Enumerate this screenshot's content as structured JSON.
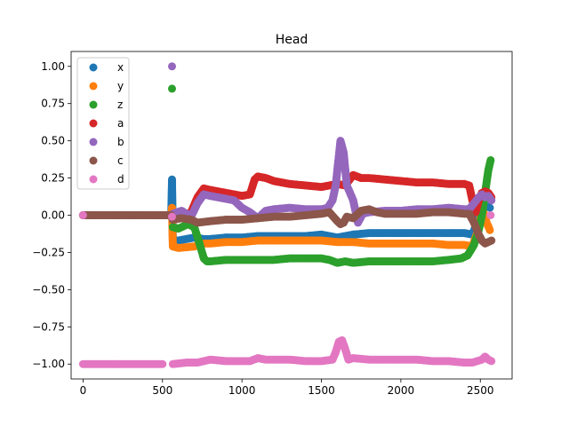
{
  "chart_data": {
    "type": "scatter",
    "title": "Head",
    "xlabel": "",
    "ylabel": "",
    "xlim": [
      -75,
      2700
    ],
    "ylim": [
      -1.1,
      1.1
    ],
    "xticks": [
      0,
      500,
      1000,
      1500,
      2000,
      2500
    ],
    "yticks": [
      -1.0,
      -0.75,
      -0.5,
      -0.25,
      0.0,
      0.25,
      0.5,
      0.75,
      1.0
    ],
    "ytick_labels": [
      "−1.00",
      "−0.75",
      "−0.50",
      "−0.25",
      "0.00",
      "0.25",
      "0.50",
      "0.75",
      "1.00"
    ],
    "legend_position": "top-left",
    "grid": false,
    "series": [
      {
        "name": "x",
        "color": "#1f77b4",
        "points": [
          [
            0,
            0
          ],
          [
            555,
            0
          ],
          [
            560,
            0.24
          ],
          [
            565,
            -0.17
          ],
          [
            600,
            -0.17
          ],
          [
            700,
            -0.15
          ],
          [
            760,
            -0.16
          ],
          [
            800,
            -0.16
          ],
          [
            900,
            -0.15
          ],
          [
            1000,
            -0.15
          ],
          [
            1100,
            -0.14
          ],
          [
            1200,
            -0.14
          ],
          [
            1300,
            -0.14
          ],
          [
            1400,
            -0.14
          ],
          [
            1500,
            -0.13
          ],
          [
            1550,
            -0.14
          ],
          [
            1600,
            -0.15
          ],
          [
            1650,
            -0.14
          ],
          [
            1700,
            -0.13
          ],
          [
            1800,
            -0.12
          ],
          [
            1900,
            -0.12
          ],
          [
            2000,
            -0.12
          ],
          [
            2100,
            -0.12
          ],
          [
            2200,
            -0.12
          ],
          [
            2300,
            -0.12
          ],
          [
            2400,
            -0.12
          ],
          [
            2450,
            -0.13
          ],
          [
            2480,
            -0.05
          ],
          [
            2500,
            0.03
          ],
          [
            2520,
            0.06
          ],
          [
            2540,
            0.06
          ],
          [
            2560,
            0.05
          ]
        ]
      },
      {
        "name": "y",
        "color": "#ff7f0e",
        "points": [
          [
            0,
            0
          ],
          [
            555,
            0
          ],
          [
            560,
            0.05
          ],
          [
            565,
            -0.21
          ],
          [
            600,
            -0.22
          ],
          [
            700,
            -0.21
          ],
          [
            760,
            -0.19
          ],
          [
            800,
            -0.19
          ],
          [
            900,
            -0.18
          ],
          [
            1000,
            -0.18
          ],
          [
            1100,
            -0.17
          ],
          [
            1200,
            -0.17
          ],
          [
            1300,
            -0.17
          ],
          [
            1400,
            -0.17
          ],
          [
            1500,
            -0.17
          ],
          [
            1600,
            -0.18
          ],
          [
            1700,
            -0.18
          ],
          [
            1800,
            -0.19
          ],
          [
            1900,
            -0.19
          ],
          [
            2000,
            -0.19
          ],
          [
            2100,
            -0.19
          ],
          [
            2200,
            -0.19
          ],
          [
            2300,
            -0.2
          ],
          [
            2400,
            -0.2
          ],
          [
            2450,
            -0.21
          ],
          [
            2480,
            -0.12
          ],
          [
            2500,
            -0.02
          ],
          [
            2520,
            0.02
          ],
          [
            2540,
            -0.05
          ],
          [
            2560,
            -0.1
          ]
        ]
      },
      {
        "name": "z",
        "color": "#2ca02c",
        "points": [
          [
            0,
            0
          ],
          [
            555,
            0
          ],
          [
            560,
            0.85
          ],
          [
            565,
            -0.08
          ],
          [
            600,
            -0.09
          ],
          [
            660,
            -0.06
          ],
          [
            700,
            -0.08
          ],
          [
            730,
            -0.18
          ],
          [
            760,
            -0.29
          ],
          [
            780,
            -0.31
          ],
          [
            800,
            -0.31
          ],
          [
            900,
            -0.3
          ],
          [
            1000,
            -0.3
          ],
          [
            1100,
            -0.3
          ],
          [
            1200,
            -0.3
          ],
          [
            1300,
            -0.29
          ],
          [
            1400,
            -0.29
          ],
          [
            1500,
            -0.29
          ],
          [
            1550,
            -0.3
          ],
          [
            1600,
            -0.32
          ],
          [
            1650,
            -0.31
          ],
          [
            1700,
            -0.32
          ],
          [
            1800,
            -0.31
          ],
          [
            1900,
            -0.31
          ],
          [
            2000,
            -0.31
          ],
          [
            2100,
            -0.31
          ],
          [
            2200,
            -0.31
          ],
          [
            2300,
            -0.3
          ],
          [
            2380,
            -0.29
          ],
          [
            2420,
            -0.27
          ],
          [
            2460,
            -0.2
          ],
          [
            2490,
            -0.1
          ],
          [
            2510,
            0
          ],
          [
            2530,
            0.15
          ],
          [
            2550,
            0.3
          ],
          [
            2565,
            0.37
          ]
        ]
      },
      {
        "name": "a",
        "color": "#d62728",
        "points": [
          [
            0,
            0
          ],
          [
            555,
            0
          ],
          [
            565,
            -0.02
          ],
          [
            620,
            -0.01
          ],
          [
            680,
            0.02
          ],
          [
            720,
            0.12
          ],
          [
            760,
            0.18
          ],
          [
            800,
            0.17
          ],
          [
            850,
            0.16
          ],
          [
            900,
            0.15
          ],
          [
            950,
            0.14
          ],
          [
            1000,
            0.13
          ],
          [
            1050,
            0.14
          ],
          [
            1080,
            0.24
          ],
          [
            1100,
            0.26
          ],
          [
            1150,
            0.25
          ],
          [
            1200,
            0.23
          ],
          [
            1300,
            0.21
          ],
          [
            1400,
            0.2
          ],
          [
            1500,
            0.19
          ],
          [
            1600,
            0.21
          ],
          [
            1650,
            0.2
          ],
          [
            1700,
            0.27
          ],
          [
            1750,
            0.25
          ],
          [
            1800,
            0.25
          ],
          [
            1900,
            0.24
          ],
          [
            2000,
            0.23
          ],
          [
            2100,
            0.22
          ],
          [
            2200,
            0.22
          ],
          [
            2300,
            0.21
          ],
          [
            2400,
            0.21
          ],
          [
            2430,
            0.2
          ],
          [
            2450,
            0.1
          ],
          [
            2470,
            0.02
          ],
          [
            2490,
            0.1
          ],
          [
            2510,
            0.15
          ],
          [
            2530,
            0.16
          ],
          [
            2550,
            0.15
          ],
          [
            2570,
            0.12
          ]
        ]
      },
      {
        "name": "b",
        "color": "#9467bd",
        "points": [
          [
            0,
            0
          ],
          [
            555,
            0
          ],
          [
            560,
            1.0
          ],
          [
            565,
            0.01
          ],
          [
            620,
            0.03
          ],
          [
            680,
            -0.01
          ],
          [
            720,
            0.08
          ],
          [
            760,
            0.14
          ],
          [
            800,
            0.13
          ],
          [
            900,
            0.11
          ],
          [
            950,
            0.1
          ],
          [
            1000,
            0.05
          ],
          [
            1050,
            0.02
          ],
          [
            1100,
            -0.02
          ],
          [
            1150,
            0.03
          ],
          [
            1200,
            0.04
          ],
          [
            1300,
            0.05
          ],
          [
            1400,
            0.04
          ],
          [
            1500,
            0.04
          ],
          [
            1540,
            0.05
          ],
          [
            1570,
            0.1
          ],
          [
            1590,
            0.2
          ],
          [
            1610,
            0.4
          ],
          [
            1620,
            0.5
          ],
          [
            1640,
            0.42
          ],
          [
            1660,
            0.2
          ],
          [
            1680,
            0.15
          ],
          [
            1700,
            0.1
          ],
          [
            1730,
            -0.05
          ],
          [
            1760,
            0.01
          ],
          [
            1800,
            0.02
          ],
          [
            1900,
            0.03
          ],
          [
            2000,
            0.03
          ],
          [
            2100,
            0.04
          ],
          [
            2200,
            0.04
          ],
          [
            2300,
            0.05
          ],
          [
            2400,
            0.04
          ],
          [
            2430,
            0.04
          ],
          [
            2460,
            0.08
          ],
          [
            2490,
            0.12
          ],
          [
            2510,
            0.14
          ],
          [
            2530,
            0.12
          ],
          [
            2550,
            0.13
          ],
          [
            2570,
            0.1
          ]
        ]
      },
      {
        "name": "c",
        "color": "#8c564b",
        "points": [
          [
            0,
            0
          ],
          [
            555,
            0
          ],
          [
            565,
            -0.03
          ],
          [
            620,
            -0.02
          ],
          [
            680,
            -0.03
          ],
          [
            720,
            -0.05
          ],
          [
            800,
            -0.04
          ],
          [
            900,
            -0.03
          ],
          [
            1000,
            -0.03
          ],
          [
            1100,
            -0.02
          ],
          [
            1200,
            -0.01
          ],
          [
            1300,
            -0.01
          ],
          [
            1400,
            0
          ],
          [
            1500,
            0.01
          ],
          [
            1550,
            0.02
          ],
          [
            1600,
            -0.04
          ],
          [
            1620,
            -0.06
          ],
          [
            1640,
            -0.05
          ],
          [
            1660,
            -0.01
          ],
          [
            1700,
            -0.02
          ],
          [
            1750,
            0.03
          ],
          [
            1800,
            0.04
          ],
          [
            1850,
            0.02
          ],
          [
            1900,
            0.01
          ],
          [
            2000,
            0.01
          ],
          [
            2100,
            0.01
          ],
          [
            2200,
            0.02
          ],
          [
            2300,
            0.02
          ],
          [
            2400,
            0.01
          ],
          [
            2430,
            0.01
          ],
          [
            2460,
            -0.05
          ],
          [
            2490,
            -0.13
          ],
          [
            2510,
            -0.17
          ],
          [
            2530,
            -0.19
          ],
          [
            2550,
            -0.18
          ],
          [
            2570,
            -0.17
          ]
        ]
      },
      {
        "name": "d",
        "color": "#e377c2",
        "points": [
          [
            0,
            0
          ],
          [
            0,
            -1.0
          ],
          [
            100,
            -1.0
          ],
          [
            200,
            -1.0
          ],
          [
            300,
            -1.0
          ],
          [
            400,
            -1.0
          ],
          [
            500,
            -1.0
          ],
          [
            560,
            -0.01
          ],
          [
            565,
            -1.0
          ],
          [
            650,
            -0.99
          ],
          [
            720,
            -0.99
          ],
          [
            760,
            -0.98
          ],
          [
            800,
            -0.97
          ],
          [
            900,
            -0.98
          ],
          [
            1000,
            -0.98
          ],
          [
            1050,
            -0.98
          ],
          [
            1100,
            -0.96
          ],
          [
            1150,
            -0.97
          ],
          [
            1200,
            -0.97
          ],
          [
            1300,
            -0.97
          ],
          [
            1400,
            -0.98
          ],
          [
            1500,
            -0.98
          ],
          [
            1570,
            -0.97
          ],
          [
            1590,
            -0.92
          ],
          [
            1610,
            -0.85
          ],
          [
            1630,
            -0.84
          ],
          [
            1650,
            -0.9
          ],
          [
            1670,
            -0.97
          ],
          [
            1700,
            -0.96
          ],
          [
            1800,
            -0.97
          ],
          [
            1900,
            -0.97
          ],
          [
            2000,
            -0.97
          ],
          [
            2100,
            -0.97
          ],
          [
            2200,
            -0.98
          ],
          [
            2300,
            -0.98
          ],
          [
            2400,
            -0.99
          ],
          [
            2450,
            -0.99
          ],
          [
            2480,
            -0.98
          ],
          [
            2510,
            -0.97
          ],
          [
            2530,
            -0.95
          ],
          [
            2550,
            -0.97
          ],
          [
            2570,
            -0.98
          ],
          [
            2565,
            0
          ]
        ]
      }
    ]
  }
}
